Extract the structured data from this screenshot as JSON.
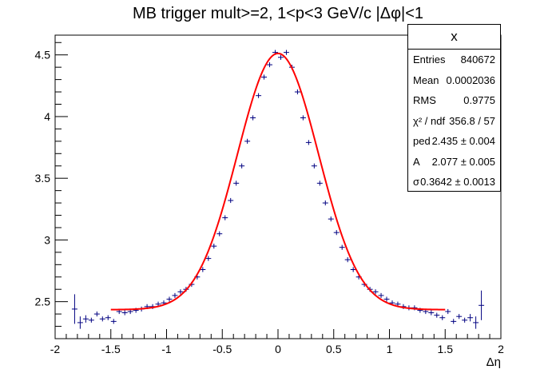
{
  "chart_data": {
    "type": "scatter",
    "title": "MB trigger mult>=2, 1<p<3 GeV/c |Δφ|<1",
    "xlabel": "Δη",
    "ylabel": "",
    "xlim": [
      -2,
      2
    ],
    "ylim": [
      2.2,
      4.66
    ],
    "x_ticks": [
      "-2",
      "-1.5",
      "-1",
      "-0.5",
      "0",
      "0.5",
      "1",
      "1.5",
      "2"
    ],
    "y_ticks": [
      "2.5",
      "3",
      "3.5",
      "4",
      "4.5"
    ],
    "grid": false,
    "legend": "none",
    "series": [
      {
        "kind": "points_with_errors",
        "color": "#000080",
        "bin_width": 0.05,
        "points": [
          [
            -1.825,
            2.44,
            0.12
          ],
          [
            -1.775,
            2.33,
            0.05
          ],
          [
            -1.725,
            2.36,
            0.03
          ],
          [
            -1.675,
            2.35,
            0.02
          ],
          [
            -1.625,
            2.4,
            0.02
          ],
          [
            -1.575,
            2.36,
            0.015
          ],
          [
            -1.525,
            2.37,
            0.015
          ],
          [
            -1.475,
            2.34,
            0.012
          ],
          [
            -1.425,
            2.42,
            0.012
          ],
          [
            -1.375,
            2.41,
            0.01
          ],
          [
            -1.325,
            2.42,
            0.01
          ],
          [
            -1.275,
            2.43,
            0.01
          ],
          [
            -1.225,
            2.44,
            0.01
          ],
          [
            -1.175,
            2.46,
            0.008
          ],
          [
            -1.125,
            2.46,
            0.008
          ],
          [
            -1.075,
            2.48,
            0.008
          ],
          [
            -1.025,
            2.49,
            0.008
          ],
          [
            -0.975,
            2.52,
            0.008
          ],
          [
            -0.925,
            2.55,
            0.008
          ],
          [
            -0.875,
            2.58,
            0.008
          ],
          [
            -0.825,
            2.6,
            0.008
          ],
          [
            -0.775,
            2.64,
            0.008
          ],
          [
            -0.725,
            2.7,
            0.008
          ],
          [
            -0.675,
            2.76,
            0.008
          ],
          [
            -0.625,
            2.85,
            0.008
          ],
          [
            -0.575,
            2.95,
            0.008
          ],
          [
            -0.525,
            3.05,
            0.008
          ],
          [
            -0.475,
            3.18,
            0.008
          ],
          [
            -0.425,
            3.32,
            0.008
          ],
          [
            -0.375,
            3.46,
            0.008
          ],
          [
            -0.325,
            3.6,
            0.008
          ],
          [
            -0.275,
            3.8,
            0.008
          ],
          [
            -0.225,
            3.99,
            0.008
          ],
          [
            -0.175,
            4.17,
            0.008
          ],
          [
            -0.125,
            4.32,
            0.008
          ],
          [
            -0.075,
            4.42,
            0.008
          ],
          [
            -0.025,
            4.52,
            0.008
          ],
          [
            0.025,
            4.48,
            0.008
          ],
          [
            0.075,
            4.52,
            0.008
          ],
          [
            0.125,
            4.4,
            0.008
          ],
          [
            0.175,
            4.2,
            0.008
          ],
          [
            0.225,
            3.99,
            0.008
          ],
          [
            0.275,
            3.79,
            0.008
          ],
          [
            0.325,
            3.6,
            0.008
          ],
          [
            0.375,
            3.46,
            0.008
          ],
          [
            0.425,
            3.3,
            0.008
          ],
          [
            0.475,
            3.17,
            0.008
          ],
          [
            0.525,
            3.06,
            0.008
          ],
          [
            0.575,
            2.94,
            0.008
          ],
          [
            0.625,
            2.84,
            0.008
          ],
          [
            0.675,
            2.76,
            0.008
          ],
          [
            0.725,
            2.7,
            0.008
          ],
          [
            0.775,
            2.64,
            0.008
          ],
          [
            0.825,
            2.6,
            0.008
          ],
          [
            0.875,
            2.58,
            0.008
          ],
          [
            0.925,
            2.55,
            0.008
          ],
          [
            0.975,
            2.52,
            0.008
          ],
          [
            1.025,
            2.49,
            0.008
          ],
          [
            1.075,
            2.48,
            0.008
          ],
          [
            1.125,
            2.46,
            0.008
          ],
          [
            1.175,
            2.45,
            0.008
          ],
          [
            1.225,
            2.45,
            0.01
          ],
          [
            1.275,
            2.43,
            0.01
          ],
          [
            1.325,
            2.42,
            0.01
          ],
          [
            1.375,
            2.41,
            0.01
          ],
          [
            1.425,
            2.39,
            0.012
          ],
          [
            1.475,
            2.37,
            0.012
          ],
          [
            1.525,
            2.42,
            0.015
          ],
          [
            1.575,
            2.34,
            0.015
          ],
          [
            1.625,
            2.38,
            0.02
          ],
          [
            1.675,
            2.35,
            0.02
          ],
          [
            1.725,
            2.37,
            0.03
          ],
          [
            1.775,
            2.33,
            0.05
          ],
          [
            1.825,
            2.47,
            0.12
          ]
        ]
      },
      {
        "kind": "fit_curve",
        "color": "#ff0000",
        "function": "gaussian",
        "x_range": [
          -1.5,
          1.5
        ]
      }
    ],
    "stats_box": {
      "title": "x",
      "rows": [
        {
          "label": "Entries",
          "value": "840672"
        },
        {
          "label": "Mean",
          "value": "0.0002036"
        },
        {
          "label": "RMS",
          "value": "0.9775"
        },
        {
          "label": "χ² / ndf",
          "value": "356.8 / 57"
        },
        {
          "label": "ped",
          "value": "2.435 ± 0.004"
        },
        {
          "label": "A",
          "value": "2.077 ± 0.005"
        },
        {
          "label": "σ",
          "value": "0.3642 ± 0.0013"
        }
      ]
    }
  }
}
